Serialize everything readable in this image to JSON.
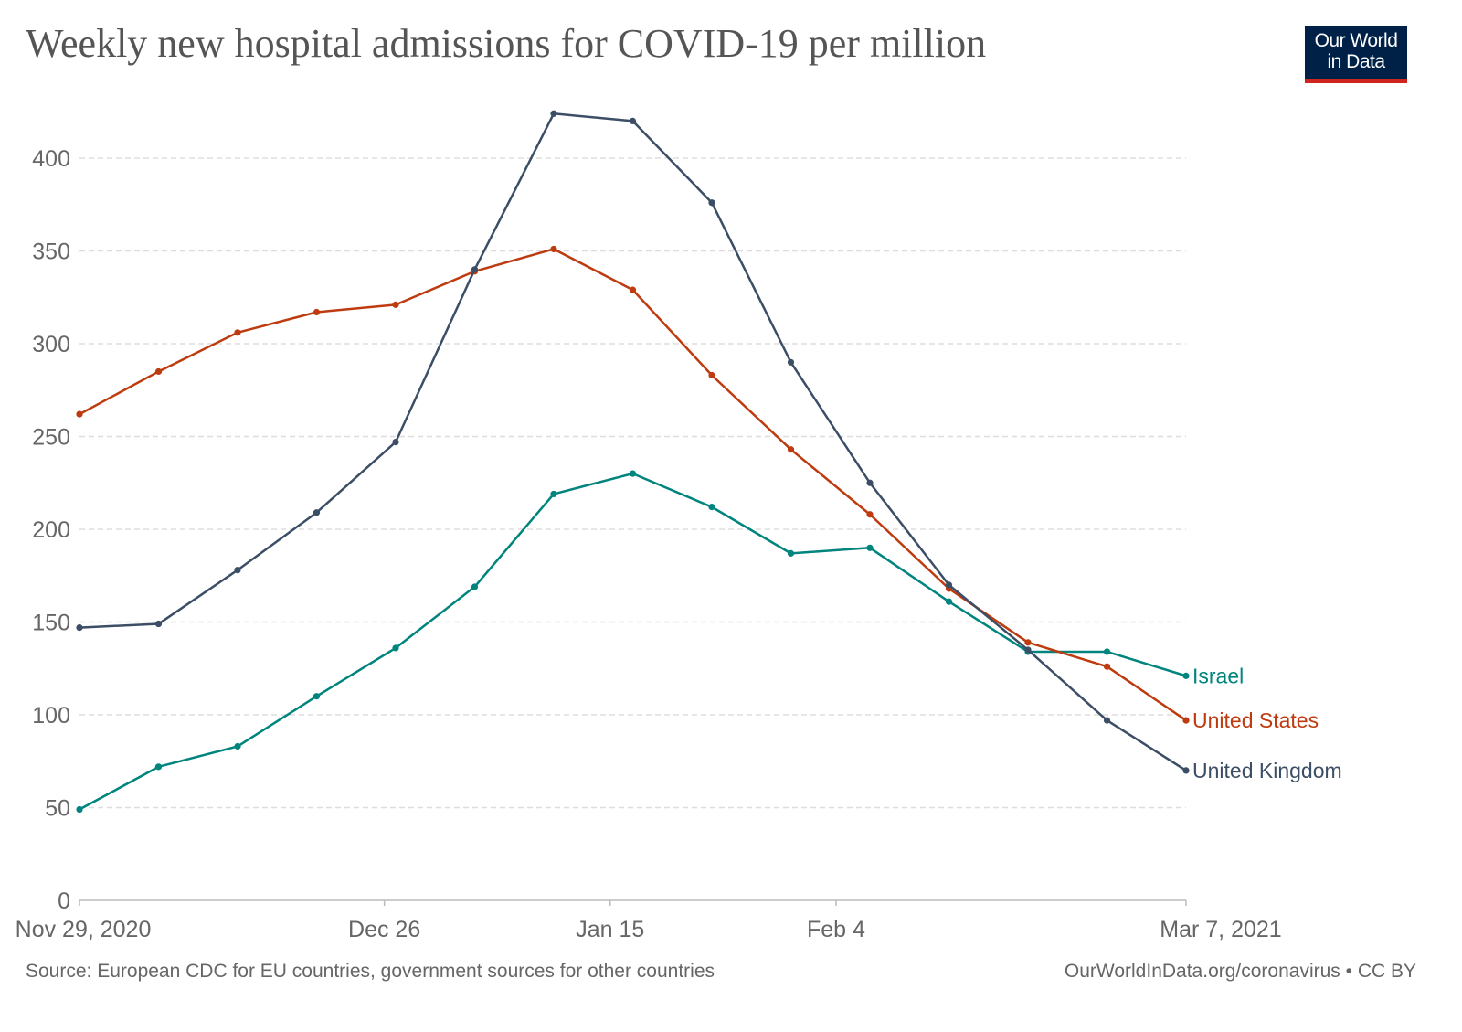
{
  "chart_data": {
    "type": "line",
    "title": "Weekly new hospital admissions for COVID-19 per million",
    "x": [
      "2020-11-29",
      "2020-12-06",
      "2020-12-13",
      "2020-12-20",
      "2020-12-27",
      "2021-01-03",
      "2021-01-10",
      "2021-01-17",
      "2021-01-24",
      "2021-01-31",
      "2021-02-07",
      "2021-02-14",
      "2021-02-21",
      "2021-02-28",
      "2021-03-07"
    ],
    "x_ticks": [
      {
        "date": "2020-11-29",
        "label": "Nov 29, 2020"
      },
      {
        "date": "2020-12-26",
        "label": "Dec 26"
      },
      {
        "date": "2021-01-15",
        "label": "Jan 15"
      },
      {
        "date": "2021-02-04",
        "label": "Feb 4"
      },
      {
        "date": "2021-03-07",
        "label": "Mar 7, 2021"
      }
    ],
    "y_ticks": [
      "0",
      "50",
      "100",
      "150",
      "200",
      "250",
      "300",
      "350",
      "400"
    ],
    "ylim": [
      0,
      400
    ],
    "grid": "horizontal dashed",
    "legend": "inline labels at line ends (right)",
    "series": [
      {
        "name": "Israel",
        "color": "#00847e",
        "values": [
          49,
          72,
          83,
          110,
          136,
          169,
          219,
          230,
          212,
          187,
          190,
          161,
          134,
          134,
          121
        ]
      },
      {
        "name": "United States",
        "color": "#be3b0f",
        "values": [
          262,
          285,
          306,
          317,
          321,
          339,
          351,
          329,
          283,
          243,
          208,
          168,
          139,
          126,
          97
        ]
      },
      {
        "name": "United Kingdom",
        "color": "#3c4e66",
        "values": [
          147,
          149,
          178,
          209,
          247,
          340,
          424,
          420,
          376,
          290,
          225,
          170,
          135,
          97,
          70
        ]
      }
    ]
  },
  "logo": {
    "line1": "Our World",
    "line2": "in Data",
    "bg": "#002147",
    "accent": "#ce261e"
  },
  "footer": {
    "source": "Source: European CDC for EU countries, government sources for other countries",
    "credit": "OurWorldInData.org/coronavirus • CC BY"
  }
}
